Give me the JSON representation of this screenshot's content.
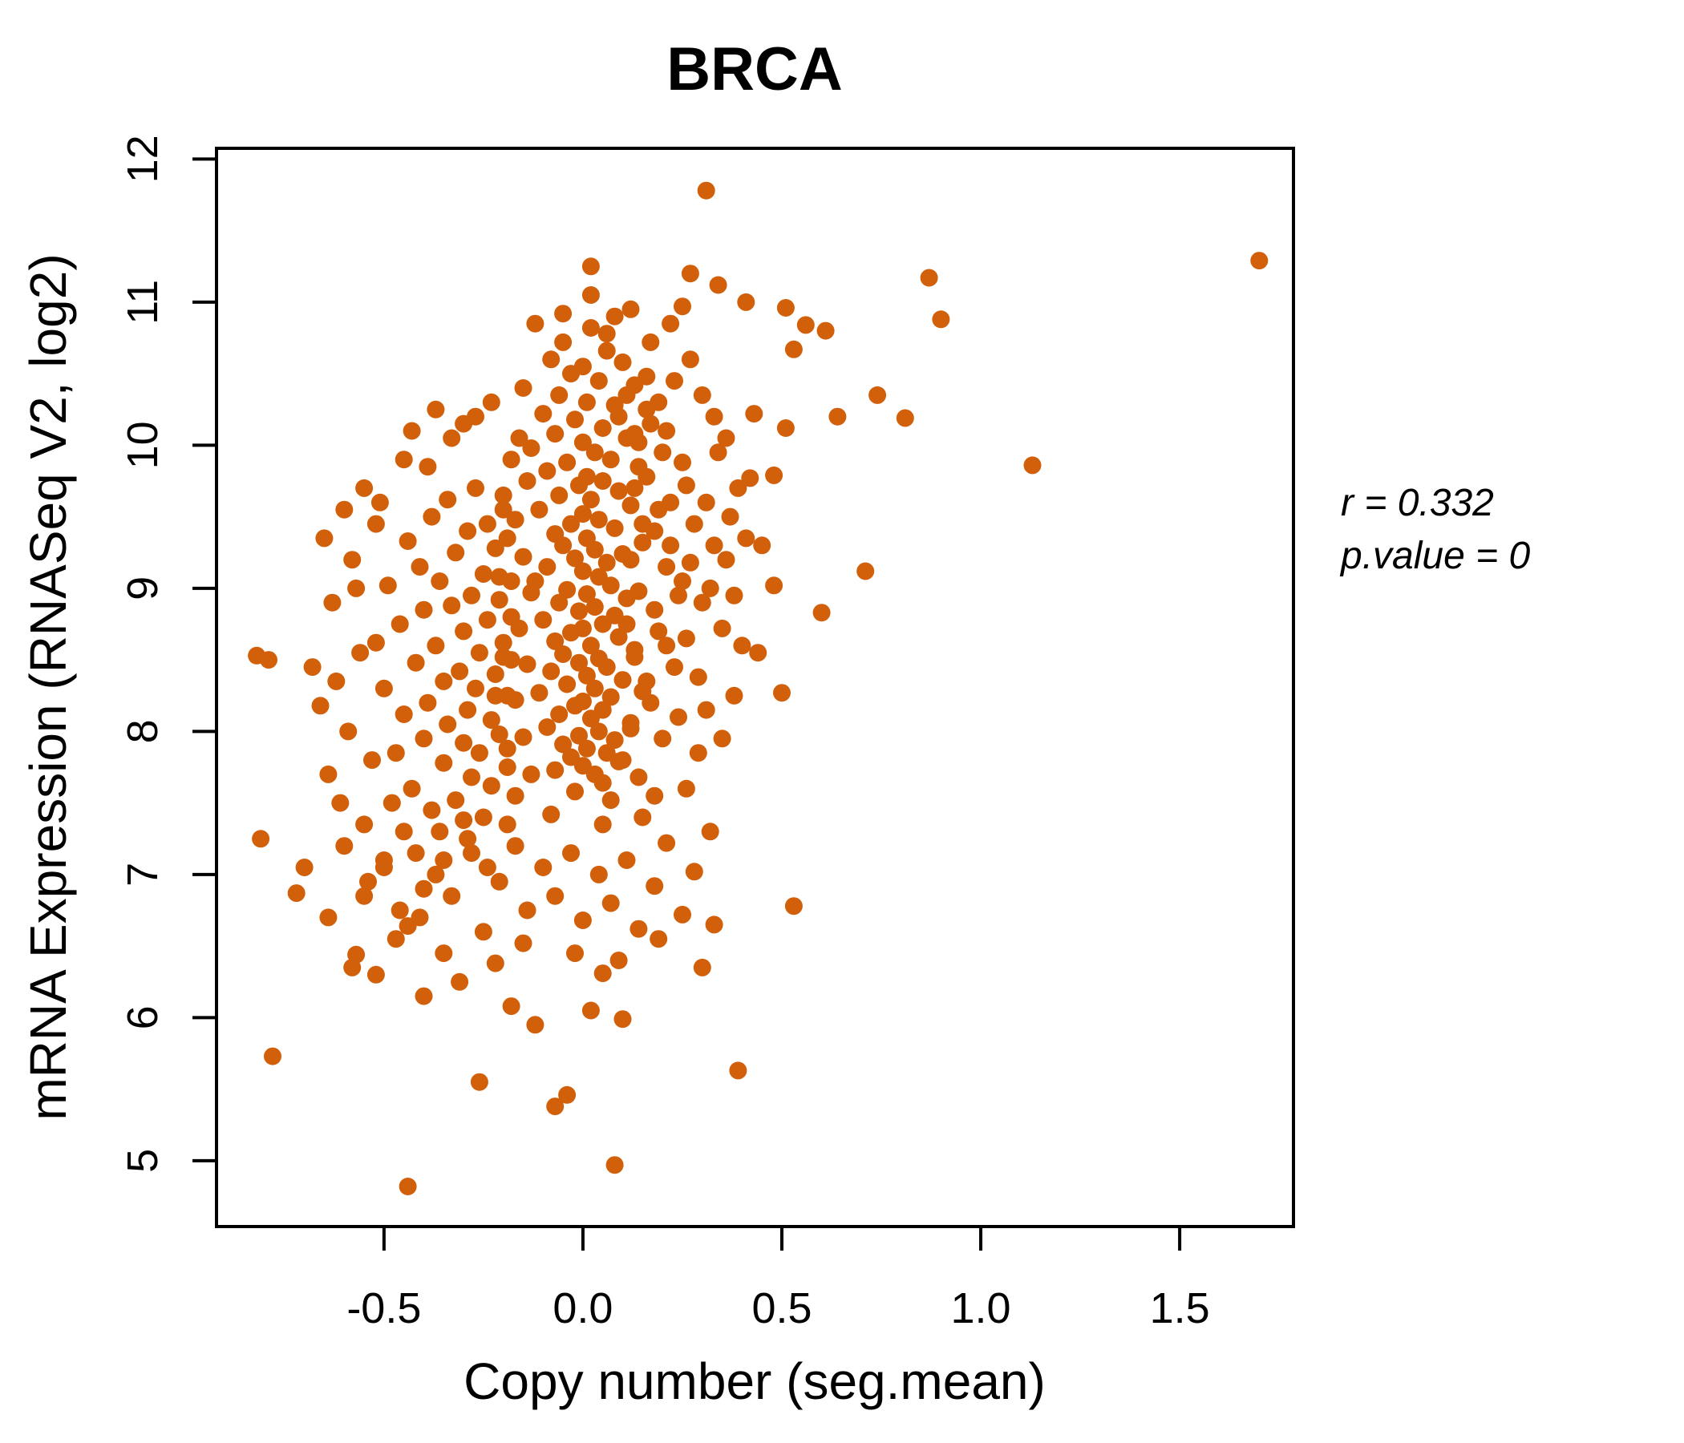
{
  "chart_data": {
    "type": "scatter",
    "title": "BRCA",
    "title_color": "#D2600A",
    "xlabel": "Copy number (seg.mean)",
    "ylabel": "mRNA Expression (RNASeq V2, log2)",
    "xlim": [
      -0.921,
      1.786
    ],
    "ylim": [
      4.54,
      12.075
    ],
    "x_ticks": [
      -0.5,
      0.0,
      0.5,
      1.0,
      1.5
    ],
    "x_tick_labels": [
      "-0.5",
      "0.0",
      "0.5",
      "1.0",
      "1.5"
    ],
    "y_ticks": [
      5,
      6,
      7,
      8,
      9,
      10,
      11,
      12
    ],
    "y_tick_labels": [
      "5",
      "6",
      "7",
      "8",
      "9",
      "10",
      "11",
      "12"
    ],
    "grid": false,
    "legend": "none",
    "point_color": "#D2600A",
    "point_radius_px": 11,
    "correlation_r": 0.332,
    "p_value": 0,
    "annotations": {
      "r_label": "r = 0.332",
      "p_label": "p.value = 0"
    },
    "points": [
      [
        0.31,
        11.78
      ],
      [
        1.7,
        11.29
      ],
      [
        0.87,
        11.17
      ],
      [
        0.02,
        11.25
      ],
      [
        0.27,
        11.2
      ],
      [
        0.34,
        11.12
      ],
      [
        0.25,
        10.97
      ],
      [
        0.41,
        11.0
      ],
      [
        0.9,
        10.88
      ],
      [
        0.51,
        10.96
      ],
      [
        0.56,
        10.84
      ],
      [
        0.61,
        10.8
      ],
      [
        0.53,
        10.67
      ],
      [
        0.74,
        10.35
      ],
      [
        0.64,
        10.2
      ],
      [
        0.81,
        10.19
      ],
      [
        0.51,
        10.12
      ],
      [
        0.43,
        10.22
      ],
      [
        0.48,
        9.79
      ],
      [
        0.42,
        9.77
      ],
      [
        1.13,
        9.86
      ],
      [
        0.71,
        9.12
      ],
      [
        0.48,
        9.02
      ],
      [
        0.6,
        8.83
      ],
      [
        0.5,
        8.27
      ],
      [
        0.53,
        6.78
      ],
      [
        0.45,
        9.3
      ],
      [
        0.44,
        8.55
      ],
      [
        0.39,
        5.63
      ],
      [
        0.08,
        4.97
      ],
      [
        -0.44,
        4.82
      ],
      [
        -0.07,
        5.38
      ],
      [
        -0.04,
        5.46
      ],
      [
        -0.26,
        5.55
      ],
      [
        -0.78,
        5.73
      ],
      [
        -0.12,
        5.95
      ],
      [
        0.1,
        5.99
      ],
      [
        -0.31,
        6.25
      ],
      [
        -0.58,
        6.35
      ],
      [
        -0.57,
        6.44
      ],
      [
        0.05,
        6.31
      ],
      [
        -0.44,
        6.64
      ],
      [
        0.33,
        6.65
      ],
      [
        -0.82,
        8.53
      ],
      [
        -0.79,
        8.5
      ],
      [
        -0.81,
        7.25
      ],
      [
        -0.72,
        6.87
      ],
      [
        -0.7,
        7.05
      ],
      [
        -0.68,
        8.45
      ],
      [
        -0.66,
        8.18
      ],
      [
        -0.64,
        7.7
      ],
      [
        -0.6,
        9.55
      ],
      [
        -0.58,
        9.2
      ],
      [
        -0.63,
        8.9
      ],
      [
        -0.55,
        9.7
      ],
      [
        -0.52,
        9.45
      ],
      [
        -0.52,
        8.62
      ],
      [
        -0.5,
        8.3
      ],
      [
        -0.49,
        9.02
      ],
      [
        -0.47,
        7.85
      ],
      [
        -0.46,
        8.75
      ],
      [
        -0.45,
        8.12
      ],
      [
        -0.44,
        9.33
      ],
      [
        -0.43,
        7.6
      ],
      [
        -0.42,
        8.48
      ],
      [
        -0.41,
        9.15
      ],
      [
        -0.4,
        7.95
      ],
      [
        -0.4,
        8.85
      ],
      [
        -0.39,
        8.2
      ],
      [
        -0.38,
        9.5
      ],
      [
        -0.38,
        7.45
      ],
      [
        -0.37,
        8.6
      ],
      [
        -0.36,
        9.05
      ],
      [
        -0.35,
        7.78
      ],
      [
        -0.35,
        8.35
      ],
      [
        -0.34,
        9.62
      ],
      [
        -0.34,
        8.05
      ],
      [
        -0.33,
        8.88
      ],
      [
        -0.32,
        7.52
      ],
      [
        -0.32,
        9.25
      ],
      [
        -0.31,
        8.42
      ],
      [
        -0.3,
        7.92
      ],
      [
        -0.3,
        8.7
      ],
      [
        -0.29,
        9.4
      ],
      [
        -0.29,
        8.15
      ],
      [
        -0.28,
        7.68
      ],
      [
        -0.28,
        8.95
      ],
      [
        -0.27,
        9.7
      ],
      [
        -0.27,
        8.3
      ],
      [
        -0.26,
        7.85
      ],
      [
        -0.26,
        8.55
      ],
      [
        -0.25,
        9.1
      ],
      [
        -0.25,
        7.4
      ],
      [
        -0.24,
        8.78
      ],
      [
        -0.24,
        9.45
      ],
      [
        -0.23,
        8.08
      ],
      [
        -0.23,
        7.62
      ],
      [
        -0.22,
        8.4
      ],
      [
        -0.22,
        9.28
      ],
      [
        -0.21,
        8.92
      ],
      [
        -0.21,
        7.98
      ],
      [
        -0.2,
        8.62
      ],
      [
        -0.2,
        9.55
      ],
      [
        -0.19,
        8.25
      ],
      [
        -0.19,
        7.75
      ],
      [
        -0.18,
        9.05
      ],
      [
        -0.18,
        8.5
      ],
      [
        -0.36,
        7.3
      ],
      [
        -0.42,
        7.15
      ],
      [
        -0.48,
        7.5
      ],
      [
        -0.33,
        10.05
      ],
      [
        -0.39,
        9.85
      ],
      [
        -0.45,
        9.9
      ],
      [
        -0.51,
        9.6
      ],
      [
        -0.27,
        10.2
      ],
      [
        -0.23,
        10.3
      ],
      [
        -0.3,
        10.15
      ],
      [
        -0.37,
        10.25
      ],
      [
        -0.43,
        10.1
      ],
      [
        -0.5,
        7.05
      ],
      [
        -0.55,
        7.35
      ],
      [
        -0.53,
        7.8
      ],
      [
        -0.56,
        8.55
      ],
      [
        -0.59,
        8.0
      ],
      [
        -0.62,
        8.35
      ],
      [
        -0.65,
        9.35
      ],
      [
        -0.57,
        9.0
      ],
      [
        -0.61,
        7.5
      ],
      [
        -0.54,
        6.95
      ],
      [
        -0.46,
        6.75
      ],
      [
        -0.4,
        6.9
      ],
      [
        -0.35,
        7.1
      ],
      [
        -0.29,
        7.25
      ],
      [
        -0.24,
        7.05
      ],
      [
        -0.19,
        7.35
      ],
      [
        -0.12,
        10.85
      ],
      [
        0.02,
        10.82
      ],
      [
        -0.05,
        10.72
      ],
      [
        0.06,
        10.66
      ],
      [
        -0.08,
        10.6
      ],
      [
        0.0,
        10.55
      ],
      [
        0.1,
        10.58
      ],
      [
        -0.03,
        10.5
      ],
      [
        0.04,
        10.45
      ],
      [
        -0.15,
        10.4
      ],
      [
        0.13,
        10.42
      ],
      [
        -0.06,
        10.35
      ],
      [
        0.01,
        10.3
      ],
      [
        0.08,
        10.28
      ],
      [
        -0.1,
        10.22
      ],
      [
        0.16,
        10.25
      ],
      [
        -0.02,
        10.18
      ],
      [
        0.05,
        10.12
      ],
      [
        -0.07,
        10.08
      ],
      [
        0.11,
        10.05
      ],
      [
        0.0,
        10.02
      ],
      [
        -0.13,
        9.98
      ],
      [
        0.03,
        9.95
      ],
      [
        0.07,
        9.9
      ],
      [
        -0.04,
        9.88
      ],
      [
        0.14,
        9.85
      ],
      [
        -0.09,
        9.82
      ],
      [
        0.01,
        9.78
      ],
      [
        0.05,
        9.75
      ],
      [
        -0.01,
        9.72
      ],
      [
        0.09,
        9.68
      ],
      [
        -0.06,
        9.65
      ],
      [
        0.02,
        9.62
      ],
      [
        0.12,
        9.58
      ],
      [
        -0.11,
        9.55
      ],
      [
        0.0,
        9.52
      ],
      [
        0.04,
        9.48
      ],
      [
        -0.03,
        9.45
      ],
      [
        0.08,
        9.42
      ],
      [
        -0.07,
        9.38
      ],
      [
        0.01,
        9.35
      ],
      [
        0.15,
        9.32
      ],
      [
        -0.05,
        9.3
      ],
      [
        0.03,
        9.27
      ],
      [
        0.1,
        9.24
      ],
      [
        -0.02,
        9.21
      ],
      [
        0.06,
        9.18
      ],
      [
        -0.09,
        9.15
      ],
      [
        0.0,
        9.12
      ],
      [
        0.04,
        9.08
      ],
      [
        -0.12,
        9.05
      ],
      [
        0.07,
        9.02
      ],
      [
        -0.04,
        8.99
      ],
      [
        0.01,
        8.96
      ],
      [
        0.11,
        8.93
      ],
      [
        -0.06,
        8.9
      ],
      [
        0.03,
        8.87
      ],
      [
        -0.01,
        8.84
      ],
      [
        0.08,
        8.81
      ],
      [
        -0.1,
        8.78
      ],
      [
        0.05,
        8.75
      ],
      [
        0.0,
        8.72
      ],
      [
        -0.03,
        8.69
      ],
      [
        0.09,
        8.66
      ],
      [
        -0.07,
        8.63
      ],
      [
        0.02,
        8.6
      ],
      [
        0.13,
        8.57
      ],
      [
        -0.05,
        8.54
      ],
      [
        0.04,
        8.51
      ],
      [
        -0.01,
        8.48
      ],
      [
        0.06,
        8.45
      ],
      [
        -0.08,
        8.42
      ],
      [
        0.01,
        8.39
      ],
      [
        0.1,
        8.36
      ],
      [
        -0.04,
        8.33
      ],
      [
        0.03,
        8.3
      ],
      [
        -0.11,
        8.27
      ],
      [
        0.07,
        8.24
      ],
      [
        0.0,
        8.21
      ],
      [
        -0.02,
        8.18
      ],
      [
        0.05,
        8.15
      ],
      [
        -0.06,
        8.12
      ],
      [
        0.02,
        8.09
      ],
      [
        0.12,
        8.06
      ],
      [
        -0.09,
        8.03
      ],
      [
        0.04,
        8.0
      ],
      [
        -0.01,
        7.97
      ],
      [
        0.08,
        7.94
      ],
      [
        -0.05,
        7.91
      ],
      [
        0.01,
        7.88
      ],
      [
        0.06,
        7.85
      ],
      [
        -0.03,
        7.82
      ],
      [
        0.09,
        7.79
      ],
      [
        0.0,
        7.76
      ],
      [
        -0.07,
        7.73
      ],
      [
        0.03,
        7.7
      ],
      [
        0.05,
        7.64
      ],
      [
        -0.02,
        7.58
      ],
      [
        0.07,
        7.52
      ],
      [
        0.17,
        10.15
      ],
      [
        0.2,
        9.95
      ],
      [
        0.22,
        9.6
      ],
      [
        0.18,
        9.4
      ],
      [
        0.21,
        9.15
      ],
      [
        0.24,
        8.95
      ],
      [
        0.19,
        8.7
      ],
      [
        0.23,
        8.45
      ],
      [
        0.17,
        8.2
      ],
      [
        0.2,
        7.95
      ],
      [
        0.16,
        9.78
      ],
      [
        0.19,
        9.55
      ],
      [
        0.22,
        9.3
      ],
      [
        0.25,
        9.05
      ],
      [
        0.18,
        8.85
      ],
      [
        0.21,
        8.6
      ],
      [
        0.16,
        8.35
      ],
      [
        0.24,
        8.1
      ],
      [
        0.14,
        10.02
      ],
      [
        0.13,
        9.7
      ],
      [
        0.15,
        9.45
      ],
      [
        0.12,
        9.2
      ],
      [
        0.14,
        8.98
      ],
      [
        0.11,
        8.75
      ],
      [
        0.13,
        8.52
      ],
      [
        0.15,
        8.28
      ],
      [
        0.12,
        8.02
      ],
      [
        0.1,
        7.8
      ],
      [
        0.14,
        7.68
      ],
      [
        0.18,
        7.55
      ],
      [
        -0.16,
        10.05
      ],
      [
        -0.14,
        9.75
      ],
      [
        -0.17,
        9.48
      ],
      [
        -0.15,
        9.22
      ],
      [
        -0.13,
        8.97
      ],
      [
        -0.16,
        8.72
      ],
      [
        -0.14,
        8.47
      ],
      [
        -0.17,
        8.22
      ],
      [
        -0.15,
        7.96
      ],
      [
        -0.13,
        7.7
      ],
      [
        0.26,
        9.72
      ],
      [
        0.28,
        9.45
      ],
      [
        0.27,
        9.18
      ],
      [
        0.3,
        8.9
      ],
      [
        0.26,
        8.65
      ],
      [
        0.29,
        8.38
      ],
      [
        0.31,
        9.6
      ],
      [
        0.33,
        9.3
      ],
      [
        0.32,
        9.0
      ],
      [
        0.35,
        8.72
      ],
      [
        0.34,
        9.95
      ],
      [
        0.37,
        9.5
      ],
      [
        0.36,
        9.2
      ],
      [
        0.38,
        8.95
      ],
      [
        0.3,
        10.35
      ],
      [
        0.27,
        10.6
      ],
      [
        0.33,
        10.2
      ],
      [
        0.36,
        10.05
      ],
      [
        0.29,
        7.85
      ],
      [
        0.26,
        7.6
      ],
      [
        0.31,
        8.15
      ],
      [
        0.35,
        7.95
      ],
      [
        0.39,
        9.7
      ],
      [
        0.41,
        9.35
      ],
      [
        0.4,
        8.6
      ],
      [
        0.38,
        8.25
      ],
      [
        0.23,
        10.45
      ],
      [
        0.19,
        10.3
      ],
      [
        0.21,
        10.1
      ],
      [
        0.25,
        9.88
      ],
      [
        0.16,
        10.48
      ],
      [
        0.11,
        10.35
      ],
      [
        0.09,
        10.2
      ],
      [
        0.13,
        10.08
      ],
      [
        -0.18,
        9.9
      ],
      [
        -0.2,
        9.65
      ],
      [
        -0.19,
        9.35
      ],
      [
        -0.21,
        9.08
      ],
      [
        -0.18,
        8.8
      ],
      [
        -0.2,
        8.52
      ],
      [
        -0.22,
        8.25
      ],
      [
        -0.19,
        7.88
      ],
      [
        -0.17,
        7.55
      ],
      [
        0.02,
        11.05
      ],
      [
        0.12,
        10.95
      ],
      [
        -0.05,
        10.92
      ],
      [
        0.22,
        10.85
      ],
      [
        0.06,
        10.78
      ],
      [
        0.17,
        10.72
      ],
      [
        0.08,
        10.9
      ],
      [
        -0.6,
        7.2
      ],
      [
        -0.55,
        6.85
      ],
      [
        -0.5,
        7.1
      ],
      [
        -0.45,
        7.3
      ],
      [
        -0.41,
        6.7
      ],
      [
        -0.37,
        7.0
      ],
      [
        -0.33,
        6.85
      ],
      [
        -0.28,
        7.15
      ],
      [
        -0.25,
        6.6
      ],
      [
        -0.21,
        6.95
      ],
      [
        -0.17,
        7.2
      ],
      [
        -0.14,
        6.75
      ],
      [
        -0.1,
        7.05
      ],
      [
        -0.07,
        6.85
      ],
      [
        -0.03,
        7.15
      ],
      [
        0.0,
        6.68
      ],
      [
        0.04,
        7.0
      ],
      [
        0.07,
        6.8
      ],
      [
        0.11,
        7.1
      ],
      [
        0.14,
        6.62
      ],
      [
        0.18,
        6.92
      ],
      [
        0.21,
        7.22
      ],
      [
        0.25,
        6.72
      ],
      [
        0.28,
        7.02
      ],
      [
        0.32,
        7.3
      ],
      [
        0.05,
        7.35
      ],
      [
        -0.08,
        7.42
      ],
      [
        -0.3,
        7.38
      ],
      [
        0.15,
        7.4
      ],
      [
        -0.47,
        6.55
      ],
      [
        -0.35,
        6.45
      ],
      [
        -0.22,
        6.38
      ],
      [
        -0.15,
        6.52
      ],
      [
        -0.02,
        6.45
      ],
      [
        0.09,
        6.4
      ],
      [
        0.19,
        6.55
      ],
      [
        -0.52,
        6.3
      ],
      [
        0.02,
        6.05
      ],
      [
        -0.18,
        6.08
      ],
      [
        -0.4,
        6.15
      ],
      [
        0.3,
        6.35
      ],
      [
        -0.64,
        6.7
      ]
    ]
  }
}
